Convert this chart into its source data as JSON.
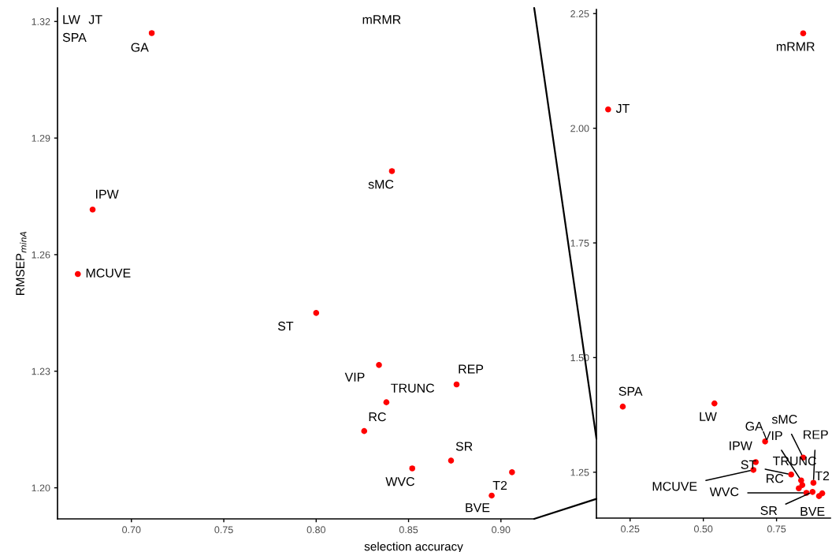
{
  "chart_data": [
    {
      "type": "scatter",
      "color": "#ff0000",
      "marker": "circle",
      "grid": false,
      "xlabel": "selection accuracy",
      "ylabel": "RMSEP$_{minA}$",
      "x": [
        0.711,
        0.841,
        0.679,
        0.671,
        0.8,
        0.834,
        0.876,
        0.838,
        0.826,
        0.873,
        0.852,
        0.906,
        0.895
      ],
      "values": [
        1.317,
        1.2815,
        1.2716,
        1.255,
        1.245,
        1.2316,
        1.2266,
        1.222,
        1.2146,
        1.207,
        1.205,
        1.204,
        1.198
      ],
      "value_labels": [
        "GA",
        "sMC",
        "IPW",
        "MCUVE",
        "ST",
        "VIP",
        "REP",
        "TRUNC",
        "RC",
        "SR",
        "WVC",
        "T2",
        "BVE"
      ],
      "annotations": [
        "LW",
        "JT",
        "SPA",
        "mRMR"
      ],
      "xlim": [
        0.66,
        0.918
      ],
      "ylim": [
        1.192,
        1.3235
      ],
      "xticks": [
        {
          "value": 0.7,
          "label": "0.70"
        },
        0.75,
        {
          "value": 0.8,
          "label": "0.80"
        },
        0.85,
        {
          "value": 0.9,
          "label": "0.90"
        }
      ],
      "yticks": [
        {
          "value": 1.2,
          "label": "1.20"
        },
        1.23,
        1.26,
        1.29,
        1.32
      ]
    },
    {
      "type": "scatter",
      "color": "#ff0000",
      "marker": "circle",
      "grid": false,
      "x": [
        0.711,
        0.841,
        0.679,
        0.671,
        0.8,
        0.834,
        0.876,
        0.838,
        0.826,
        0.873,
        0.852,
        0.906,
        0.895,
        0.538,
        0.175,
        0.225,
        0.841
      ],
      "values": [
        1.317,
        1.282,
        1.272,
        1.255,
        1.245,
        1.232,
        1.227,
        1.222,
        1.215,
        1.207,
        1.205,
        1.204,
        1.198,
        1.4,
        2.041,
        1.393,
        2.207
      ],
      "value_labels": [
        "GA",
        "sMC",
        "IPW",
        "MCUVE",
        "ST",
        "VIP",
        "REP",
        "TRUNC",
        "RC",
        "SR",
        "WVC",
        "T2",
        "BVE",
        "LW",
        "JT",
        "SPA",
        "mRMR"
      ],
      "xlim": [
        0.135,
        0.934
      ],
      "ylim": [
        1.15,
        2.259
      ],
      "xticks": [
        0.25,
        {
          "value": 0.5,
          "label": "0.50"
        },
        0.75
      ],
      "yticks": [
        1.25,
        {
          "value": 1.5,
          "label": "1.50"
        },
        1.75,
        {
          "value": 2.0,
          "label": "2.00"
        },
        2.25
      ]
    }
  ]
}
